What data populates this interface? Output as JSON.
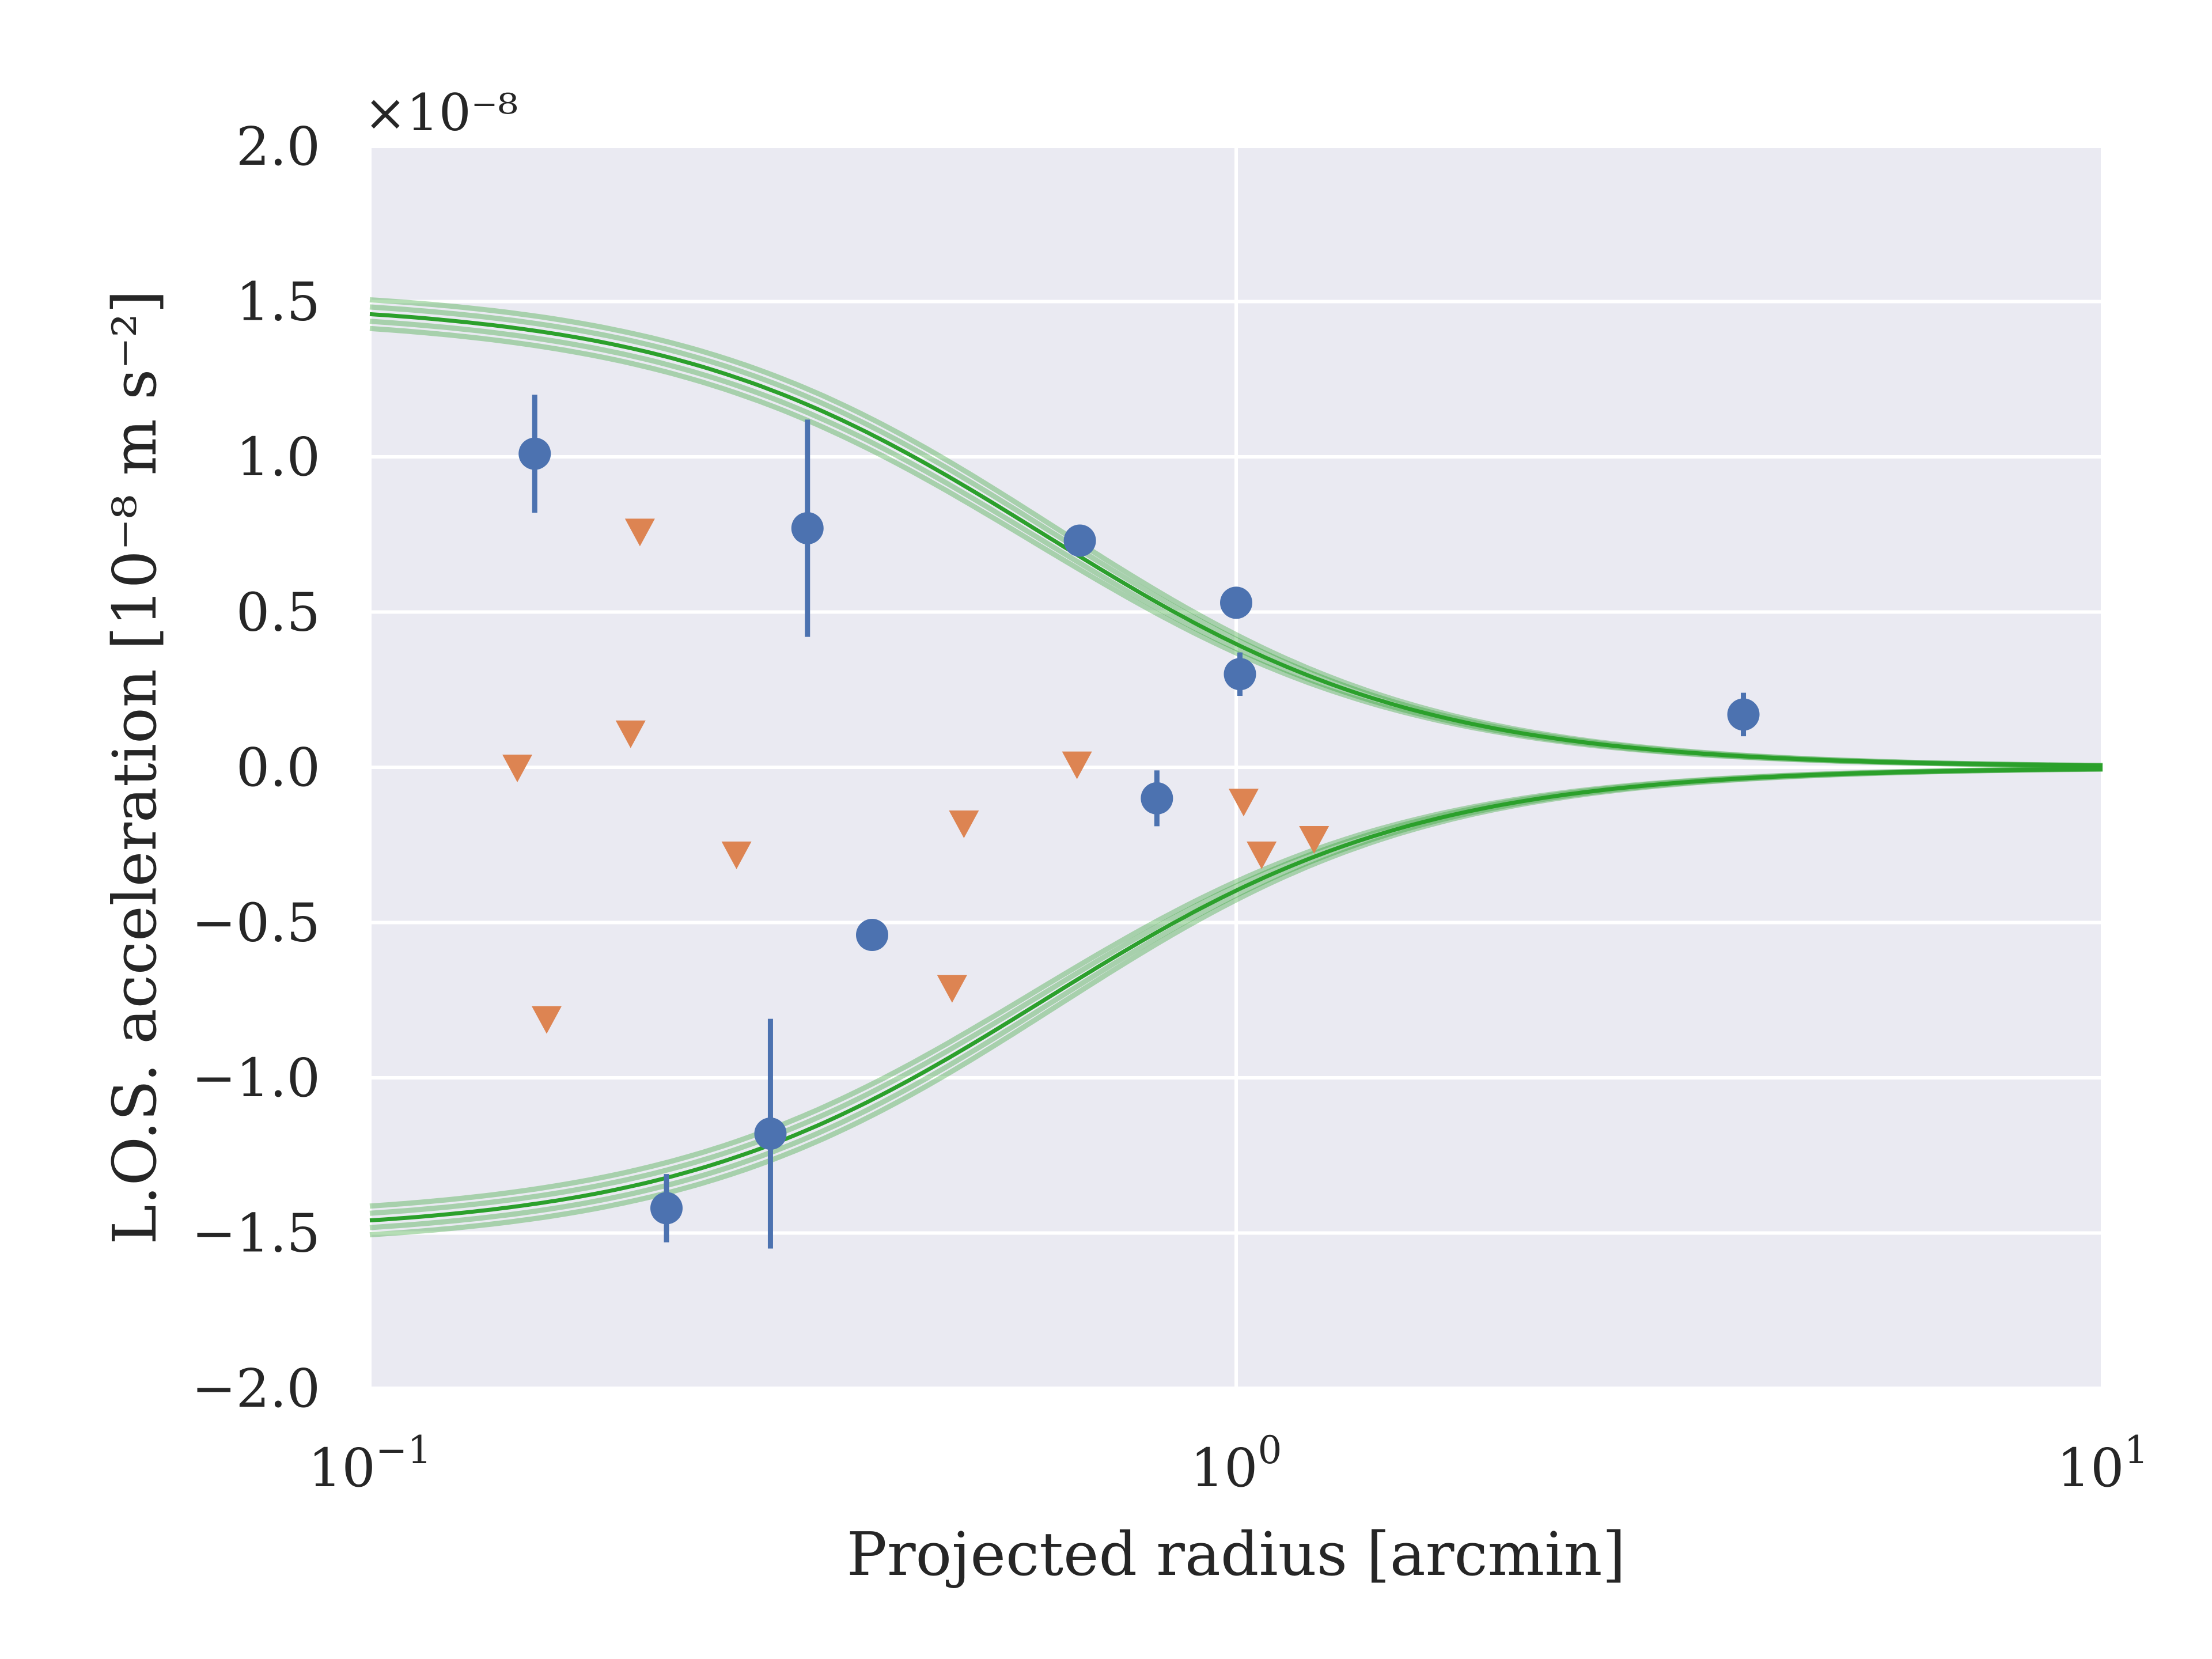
{
  "chart_data": {
    "type": "scatter",
    "xlabel": "Projected radius [arcmin]",
    "ylabel": "L.O.S. acceleration [10⁻⁸ m s⁻²]",
    "y_offset_label": "×10⁻⁸",
    "xscale": "log",
    "xlim": [
      0.1,
      10
    ],
    "ylim": [
      -2e-08,
      2e-08
    ],
    "grid": true,
    "x_ticks": [
      {
        "value": 0.1,
        "base": "10",
        "exp": "−1"
      },
      {
        "value": 1,
        "base": "10",
        "exp": "0"
      },
      {
        "value": 10,
        "base": "10",
        "exp": "1"
      }
    ],
    "y_ticks": [
      {
        "value": 2e-08,
        "label": "2.0"
      },
      {
        "value": 1.5e-08,
        "label": "1.5"
      },
      {
        "value": 1e-08,
        "label": "1.0"
      },
      {
        "value": 5e-09,
        "label": "0.5"
      },
      {
        "value": 0.0,
        "label": "0.0"
      },
      {
        "value": -5e-09,
        "label": "−0.5"
      },
      {
        "value": -1e-08,
        "label": "−1.0"
      },
      {
        "value": -1.5e-08,
        "label": "−1.5"
      },
      {
        "value": -2e-08,
        "label": "−2.0"
      }
    ],
    "series": [
      {
        "marker": "circle",
        "color": "#4c72b0",
        "points": [
          {
            "x": 0.155,
            "y": 1.01e-08,
            "err": 1.9e-09
          },
          {
            "x": 0.22,
            "y": -1.42e-08,
            "err": 1.1e-09
          },
          {
            "x": 0.29,
            "y": -1.18e-08,
            "err": 3.7e-09
          },
          {
            "x": 0.32,
            "y": 7.7e-09,
            "err": 3.5e-09
          },
          {
            "x": 0.38,
            "y": -5.4e-09,
            "err": 0.0
          },
          {
            "x": 0.66,
            "y": 7.3e-09,
            "err": 0.0
          },
          {
            "x": 0.81,
            "y": -1e-09,
            "err": 9e-10
          },
          {
            "x": 1.0,
            "y": 5.3e-09,
            "err": 0.0
          },
          {
            "x": 1.01,
            "y": 3e-09,
            "err": 7e-10
          },
          {
            "x": 3.85,
            "y": 1.7e-09,
            "err": 7e-10
          }
        ]
      },
      {
        "marker": "triangle-down",
        "color": "#dd8452",
        "points": [
          {
            "x": 0.148,
            "y": 0.0
          },
          {
            "x": 0.16,
            "y": -8.1e-09
          },
          {
            "x": 0.2,
            "y": 1.1e-09
          },
          {
            "x": 0.205,
            "y": 7.6e-09
          },
          {
            "x": 0.265,
            "y": -2.8e-09
          },
          {
            "x": 0.47,
            "y": -7.1e-09
          },
          {
            "x": 0.485,
            "y": -1.8e-09
          },
          {
            "x": 0.655,
            "y": 1e-10
          },
          {
            "x": 1.02,
            "y": -1.1e-09
          },
          {
            "x": 1.07,
            "y": -2.8e-09
          },
          {
            "x": 1.23,
            "y": -2.3e-09
          }
        ]
      }
    ],
    "model": {
      "color": "#2ca02c",
      "amplitude": 1.5e-08,
      "scale_radius": 0.6,
      "band_scales": [
        0.97,
        0.985,
        1.0,
        1.015,
        1.03
      ]
    }
  }
}
